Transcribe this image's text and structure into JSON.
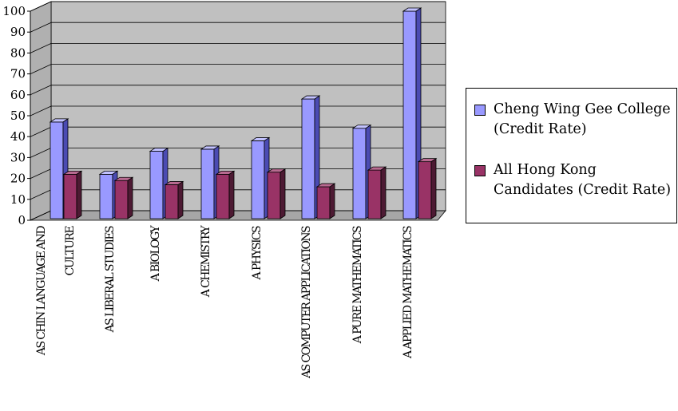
{
  "colors": {
    "series1_front": "#9999ff",
    "series1_side": "#4b4bb3",
    "series1_top": "#c2c2ff",
    "series2_front": "#993366",
    "series2_side": "#4d1a33",
    "series2_top": "#b86a90",
    "plot_wall": "#c0c0c0",
    "floor": "#a6a6a6"
  },
  "chart_data": {
    "type": "bar",
    "title": "",
    "xlabel": "",
    "ylabel": "",
    "ylim": [
      0,
      100
    ],
    "y_ticks": [
      0,
      10,
      20,
      30,
      40,
      50,
      60,
      70,
      80,
      90,
      100
    ],
    "grid": true,
    "legend_position": "right",
    "categories": [
      "AS CHIN LANGUAGE AND CULTURE",
      "AS LIBERAL STUDIES",
      "A BIOLOGY",
      "A CHEMISTRY",
      "A PHYSICS",
      "AS COMPUTER APPLICATIONS",
      "A PURE MATHEMATICS",
      "A APPLIED MATHEMATICS"
    ],
    "category_label_lines": [
      [
        "AS CHIN LANGUAGE AND",
        "CULTURE"
      ],
      [
        "AS LIBERAL STUDIES"
      ],
      [
        "A BIOLOGY"
      ],
      [
        "A CHEMISTRY"
      ],
      [
        "A PHYSICS"
      ],
      [
        "AS COMPUTER APPLICATIONS"
      ],
      [
        "A PURE MATHEMATICS"
      ],
      [
        "A APPLIED MATHEMATICS"
      ]
    ],
    "series": [
      {
        "name": "Cheng Wing Gee College (Credit Rate)",
        "values": [
          47,
          22,
          33,
          34,
          38,
          58,
          44,
          100
        ]
      },
      {
        "name": "All Hong Kong Candidates (Credit Rate)",
        "values": [
          22,
          19,
          17,
          22,
          23,
          16,
          24,
          28
        ]
      }
    ]
  },
  "legend": {
    "items": [
      {
        "label": "Cheng Wing Gee College (Credit Rate)"
      },
      {
        "label": "All Hong Kong Candidates (Credit Rate)"
      }
    ]
  }
}
